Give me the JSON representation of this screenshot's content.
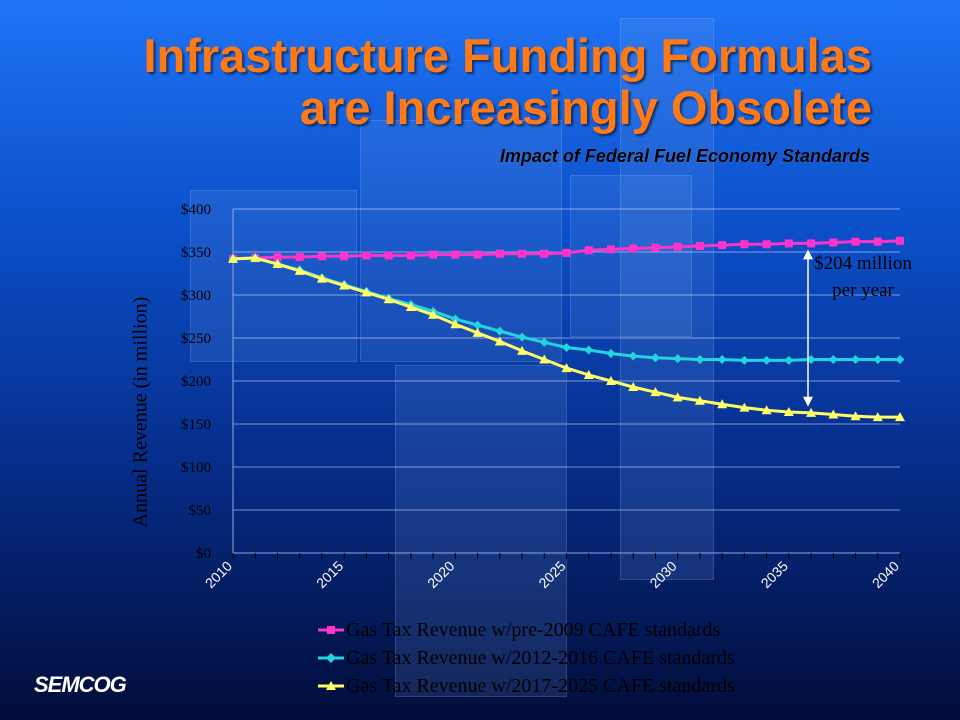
{
  "slide": {
    "title_line1": "Infrastructure Funding Formulas",
    "title_line2": "are Increasingly Obsolete",
    "subtitle": "Impact of Federal Fuel Economy Standards",
    "annotation": "$204 million per year",
    "logo": "SEMCOG"
  },
  "colors": {
    "title": "#ff7a16",
    "series_pre2009": "#ff33cc",
    "series_2012_2016": "#22d3e0",
    "series_2017_2025": "#ffff66"
  },
  "chart_data": {
    "type": "line",
    "title": "",
    "xlabel": "",
    "ylabel": "Annual Revenue (in million)",
    "x_range": [
      2010,
      2040
    ],
    "ylim": [
      0,
      400
    ],
    "y_ticks": [
      0,
      50,
      100,
      150,
      200,
      250,
      300,
      350,
      400
    ],
    "y_tick_labels": [
      "$0",
      "$50",
      "$100",
      "$150",
      "$200",
      "$250",
      "$300",
      "$350",
      "$400"
    ],
    "x_tick_labels": [
      "2010",
      "2015",
      "2020",
      "2025",
      "2030",
      "2035",
      "2040"
    ],
    "x_tick_values": [
      2010,
      2015,
      2020,
      2025,
      2030,
      2035,
      2040
    ],
    "grid": true,
    "legend_position": "bottom",
    "x": [
      2010,
      2011,
      2012,
      2013,
      2014,
      2015,
      2016,
      2017,
      2018,
      2019,
      2020,
      2021,
      2022,
      2023,
      2024,
      2025,
      2026,
      2027,
      2028,
      2029,
      2030,
      2031,
      2032,
      2033,
      2034,
      2035,
      2036,
      2037,
      2038,
      2039,
      2040
    ],
    "series": [
      {
        "name": "Gas Tax Revenue w/pre-2009 CAFE standards",
        "marker": "square",
        "values": [
          342,
          343,
          344,
          344,
          345,
          345,
          346,
          346,
          346,
          347,
          347,
          347,
          348,
          348,
          348,
          349,
          352,
          353,
          354,
          355,
          356,
          357,
          358,
          359,
          359,
          360,
          360,
          361,
          362,
          362,
          363
        ]
      },
      {
        "name": "Gas Tax Revenue w/2012-2016 CAFE standards",
        "marker": "diamond",
        "values": [
          342,
          343,
          336,
          329,
          320,
          312,
          304,
          296,
          289,
          281,
          272,
          265,
          258,
          251,
          245,
          239,
          236,
          232,
          229,
          227,
          226,
          225,
          225,
          224,
          224,
          224,
          225,
          225,
          225,
          225,
          225
        ]
      },
      {
        "name": "Gas Tax Revenue w/2017-2025 CAFE standards",
        "marker": "triangle",
        "values": [
          342,
          343,
          336,
          328,
          319,
          311,
          303,
          295,
          286,
          277,
          266,
          256,
          246,
          235,
          225,
          215,
          207,
          200,
          193,
          187,
          181,
          177,
          173,
          169,
          166,
          164,
          163,
          161,
          159,
          158,
          158
        ]
      }
    ]
  }
}
